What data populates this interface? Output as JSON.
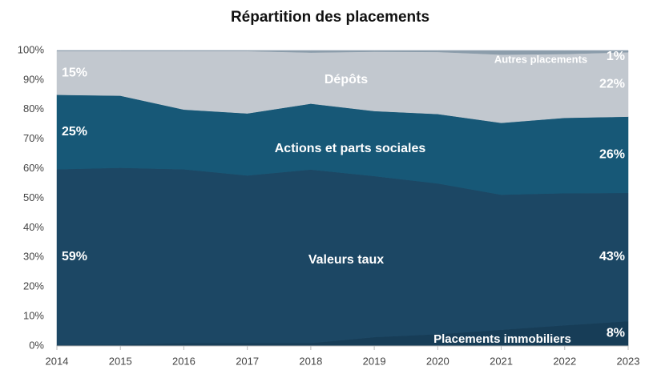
{
  "chart_data": {
    "type": "stacked_area",
    "title": "Répartition des placements",
    "x": [
      2014,
      2015,
      2016,
      2017,
      2018,
      2019,
      2020,
      2021,
      2022,
      2023
    ],
    "xlim": [
      2014,
      2023
    ],
    "xticks": [
      2014,
      2015,
      2016,
      2017,
      2018,
      2019,
      2020,
      2021,
      2022,
      2023
    ],
    "ylim": [
      0,
      100
    ],
    "yticks": [
      {
        "value": 0,
        "label": "0%"
      },
      {
        "value": 10,
        "label": "10%"
      },
      {
        "value": 20,
        "label": "20%"
      },
      {
        "value": 30,
        "label": "30%"
      },
      {
        "value": 40,
        "label": "40%"
      },
      {
        "value": 50,
        "label": "50%"
      },
      {
        "value": 60,
        "label": "60%"
      },
      {
        "value": 70,
        "label": "70%"
      },
      {
        "value": 80,
        "label": "80%"
      },
      {
        "value": 90,
        "label": "90%"
      },
      {
        "value": 100,
        "label": "100%"
      }
    ],
    "grid": false,
    "series": [
      {
        "name": "Placements immobiliers",
        "color": "#173d57",
        "values": [
          0.4,
          0.5,
          1,
          1,
          1,
          3,
          4,
          5.5,
          7,
          8.4
        ],
        "value_labels": [
          null,
          null,
          null,
          null,
          null,
          null,
          null,
          null,
          null,
          "8%"
        ]
      },
      {
        "name": "Valeurs taux",
        "color": "#1c4764",
        "values": [
          59.4,
          59.8,
          58.8,
          56.7,
          58.7,
          54.5,
          51,
          45.7,
          44.7,
          43.4
        ],
        "value_labels": [
          "59%",
          null,
          null,
          null,
          null,
          null,
          null,
          null,
          null,
          "43%"
        ]
      },
      {
        "name": "Actions et parts sociales",
        "color": "#175877",
        "values": [
          25.2,
          24.4,
          20.2,
          21,
          22.3,
          22,
          23.5,
          24.3,
          25.5,
          25.8
        ],
        "value_labels": [
          "25%",
          null,
          null,
          null,
          null,
          null,
          null,
          null,
          null,
          "26%"
        ]
      },
      {
        "name": "Dépôts",
        "color": "#c2c8cf",
        "values": [
          14.8,
          15.1,
          19.8,
          21.1,
          17.3,
          20.1,
          21,
          23.1,
          21.6,
          21.8
        ],
        "value_labels": [
          "15%",
          null,
          null,
          null,
          null,
          null,
          null,
          null,
          null,
          "22%"
        ]
      },
      {
        "name": "Autres placements",
        "color": "#8c9dab",
        "values": [
          0.2,
          0.2,
          0.2,
          0.2,
          0.7,
          0.4,
          0.5,
          1.4,
          1.2,
          0.6
        ],
        "value_labels": [
          null,
          null,
          null,
          null,
          null,
          null,
          null,
          null,
          null,
          "1%"
        ]
      }
    ]
  }
}
